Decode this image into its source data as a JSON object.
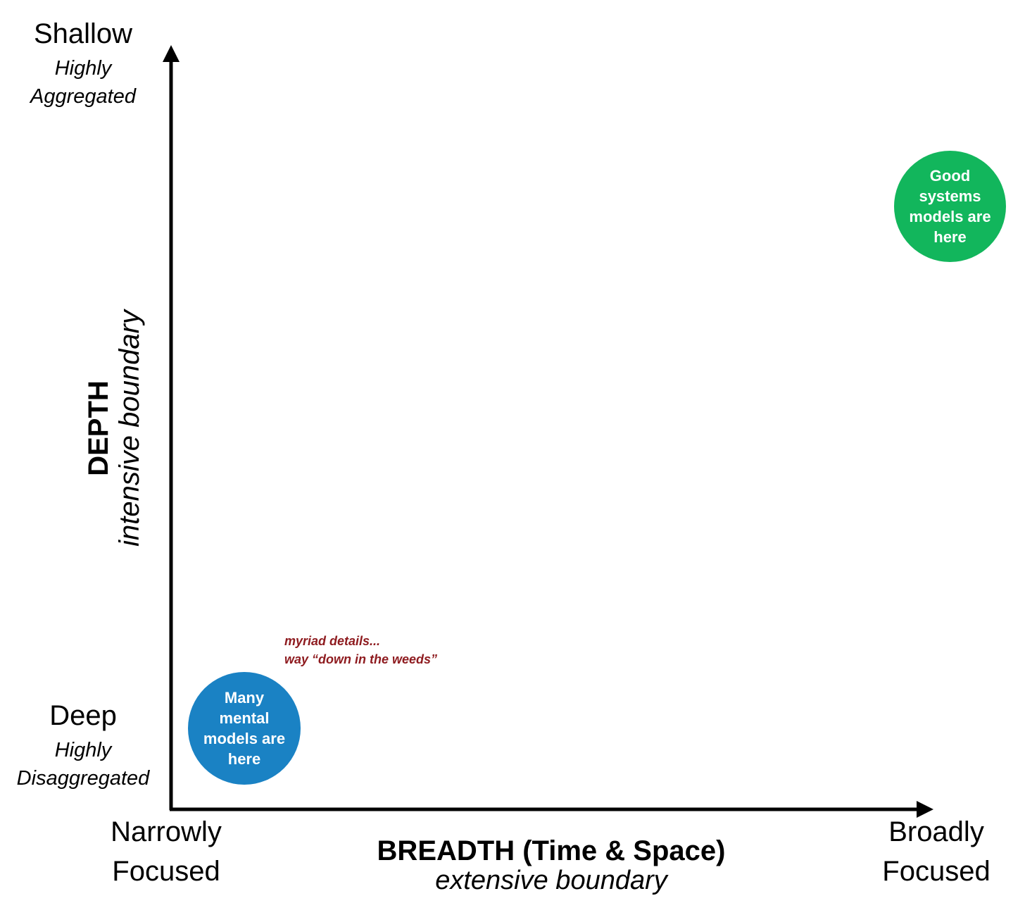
{
  "y_axis": {
    "top_label": "Shallow",
    "top_sublabel_1": "Highly",
    "top_sublabel_2": "Aggregated",
    "bottom_label": "Deep",
    "bottom_sublabel_1": "Highly",
    "bottom_sublabel_2": "Disaggregated",
    "title": "DEPTH",
    "subtitle": "intensive boundary"
  },
  "x_axis": {
    "left_label_1": "Narrowly",
    "left_label_2": "Focused",
    "right_label_1": "Broadly",
    "right_label_2": "Focused",
    "title": "BREADTH (Time & Space)",
    "subtitle": "extensive boundary"
  },
  "bubbles": {
    "mental_models": {
      "text": "Many mental models are here",
      "color": "#1a82c4"
    },
    "systems_models": {
      "text": "Good systems models are here",
      "color": "#12b65c"
    }
  },
  "annotation": {
    "line_1": "myriad details...",
    "line_2": "way “down in the weeds”",
    "color": "#8e1b1f"
  },
  "colors": {
    "axis": "#000000",
    "background": "#ffffff"
  }
}
